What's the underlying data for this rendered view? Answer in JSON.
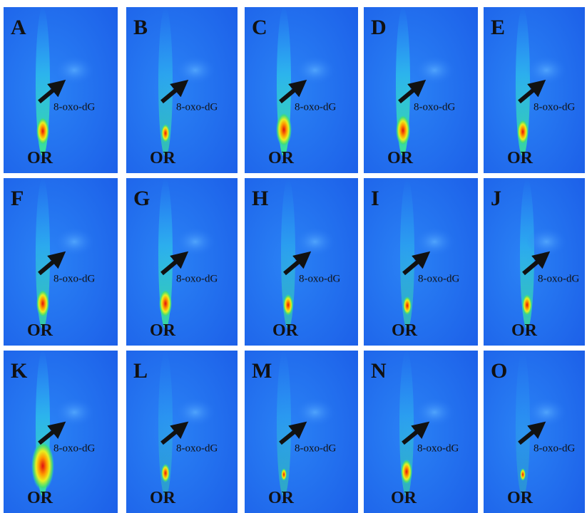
{
  "panels": [
    {
      "letter": "A",
      "spot_label": "8-oxo-dG",
      "origin_label": "OR"
    },
    {
      "letter": "B",
      "spot_label": "8-oxo-dG",
      "origin_label": "OR"
    },
    {
      "letter": "C",
      "spot_label": "8-oxo-dG",
      "origin_label": "OR"
    },
    {
      "letter": "D",
      "spot_label": "8-oxo-dG",
      "origin_label": "OR"
    },
    {
      "letter": "E",
      "spot_label": "8-oxo-dG",
      "origin_label": "OR"
    },
    {
      "letter": "F",
      "spot_label": "8-oxo-dG",
      "origin_label": "OR"
    },
    {
      "letter": "G",
      "spot_label": "8-oxo-dG",
      "origin_label": "OR"
    },
    {
      "letter": "H",
      "spot_label": "8-oxo-dG",
      "origin_label": "OR"
    },
    {
      "letter": "I",
      "spot_label": "8-oxo-dG",
      "origin_label": "OR"
    },
    {
      "letter": "J",
      "spot_label": "8-oxo-dG",
      "origin_label": "OR"
    },
    {
      "letter": "K",
      "spot_label": "8-oxo-dG",
      "origin_label": "OR"
    },
    {
      "letter": "L",
      "spot_label": "8-oxo-dG",
      "origin_label": "OR"
    },
    {
      "letter": "M",
      "spot_label": "8-oxo-dG",
      "origin_label": "OR"
    },
    {
      "letter": "N",
      "spot_label": "8-oxo-dG",
      "origin_label": "OR"
    },
    {
      "letter": "O",
      "spot_label": "8-oxo-dG",
      "origin_label": "OR"
    }
  ]
}
